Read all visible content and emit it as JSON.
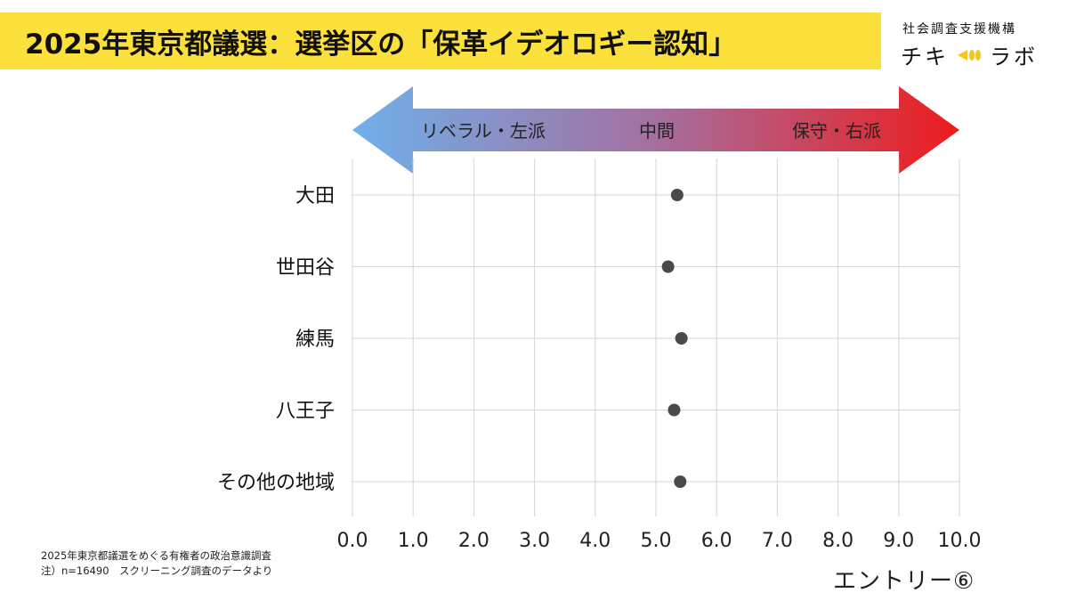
{
  "title": "2025年東京都議選：選挙区の「保革イデオロギー認知」",
  "logo": {
    "org": "社会調査支援機構",
    "name_left": "チキ",
    "name_right": "ラボ",
    "mark_icon": "megaphone-icon"
  },
  "chart_data": {
    "type": "scatter",
    "orientation": "horizontal",
    "categories": [
      "大田",
      "世田谷",
      "練馬",
      "八王子",
      "その他の地域"
    ],
    "values": [
      5.35,
      5.2,
      5.42,
      5.3,
      5.4
    ],
    "xlim": [
      0,
      10
    ],
    "x_ticks": [
      "0.0",
      "1.0",
      "2.0",
      "3.0",
      "4.0",
      "5.0",
      "6.0",
      "7.0",
      "8.0",
      "9.0",
      "10.0"
    ],
    "grid": true,
    "scale_arrow": {
      "left_label": "リベラル・左派",
      "center_label": "中間",
      "right_label": "保守・右派",
      "left_color": "#6fb0ea",
      "right_color": "#ee1c1c"
    },
    "point_color": "#4a4a4a"
  },
  "footnote": {
    "line1": "2025年東京都議選をめぐる有権者の政治意識調査",
    "line2": "注）n=16490　スクリーニング調査のデータより"
  },
  "entry_label": "エントリー⑥"
}
